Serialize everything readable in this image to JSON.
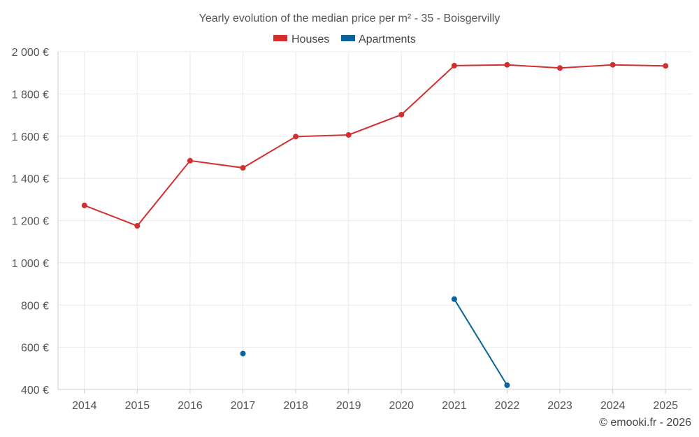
{
  "chart_data": {
    "type": "line",
    "title": "Yearly evolution of the median price per m² - 35 - Boisgervilly",
    "categories": [
      "2014",
      "2015",
      "2016",
      "2017",
      "2018",
      "2019",
      "2020",
      "2021",
      "2022",
      "2023",
      "2024",
      "2025"
    ],
    "ylim": [
      400,
      2000
    ],
    "yticks": [
      400,
      600,
      800,
      1000,
      1200,
      1400,
      1600,
      1800,
      2000
    ],
    "ytick_labels": [
      "400 €",
      "600 €",
      "800 €",
      "1 000 €",
      "1 200 €",
      "1 400 €",
      "1 600 €",
      "1 800 €",
      "2 000 €"
    ],
    "grid": true,
    "legend_position": "top-center",
    "series": [
      {
        "name": "Houses",
        "color": "#d32f2f",
        "values": [
          1272,
          1175,
          1484,
          1450,
          1598,
          1606,
          1702,
          1934,
          1938,
          1923,
          1938,
          1933
        ]
      },
      {
        "name": "Apartments",
        "color": "#0a6499",
        "values": [
          null,
          null,
          null,
          570,
          null,
          null,
          null,
          828,
          420,
          null,
          null,
          null
        ]
      }
    ],
    "credit": "© emooki.fr - 2026"
  }
}
